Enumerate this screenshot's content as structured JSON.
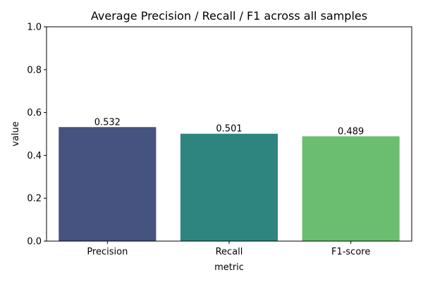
{
  "chart_data": {
    "type": "bar",
    "title": "Average Precision / Recall / F1 across all samples",
    "xlabel": "metric",
    "ylabel": "value",
    "categories": [
      "Precision",
      "Recall",
      "F1-score"
    ],
    "values": [
      0.532,
      0.501,
      0.489
    ],
    "value_labels": [
      "0.532",
      "0.501",
      "0.489"
    ],
    "colors": [
      "#46527f",
      "#2e857f",
      "#6bbe6f"
    ],
    "ylim": [
      0,
      1.0
    ],
    "yticks": [
      0.0,
      0.2,
      0.4,
      0.6,
      0.8,
      1.0
    ],
    "ytick_labels": [
      "0.0",
      "0.2",
      "0.4",
      "0.6",
      "0.8",
      "1.0"
    ],
    "grid": false,
    "legend": "none"
  }
}
